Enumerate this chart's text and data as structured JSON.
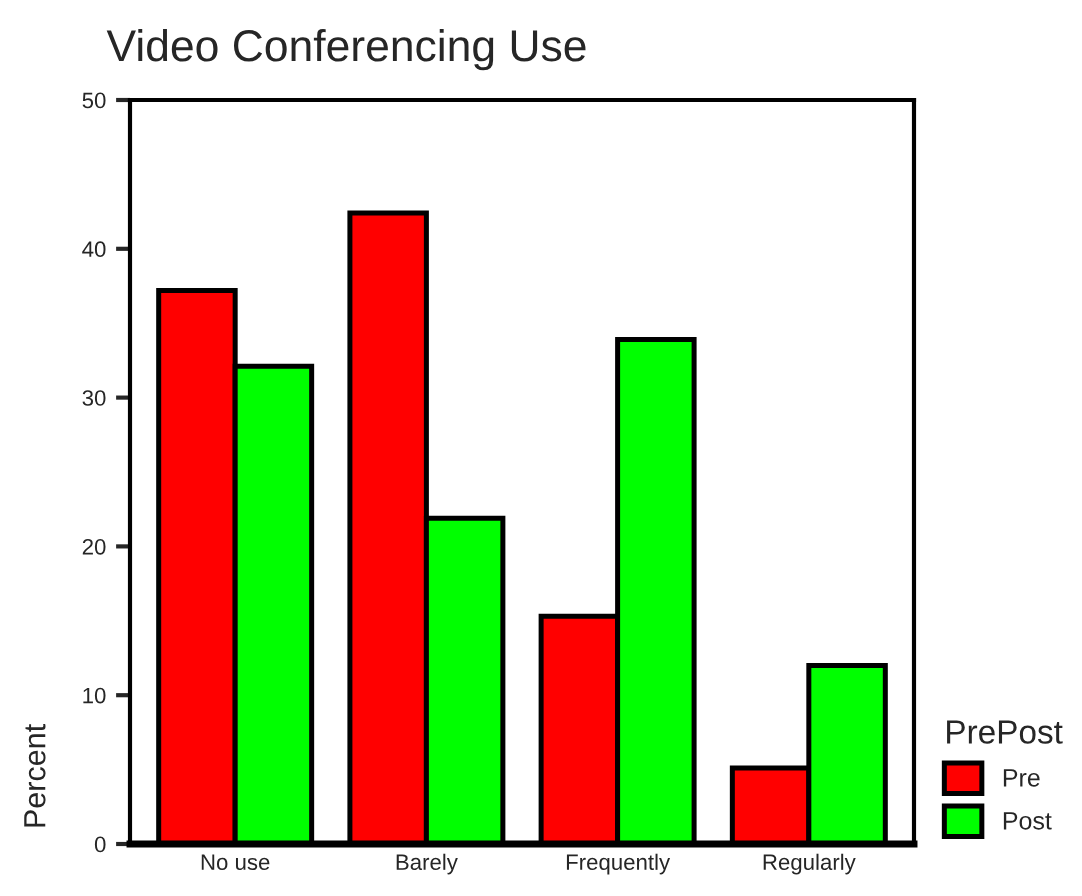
{
  "chart_data": {
    "type": "bar",
    "title": "Video Conferencing Use",
    "ylabel": "Percent",
    "legend_title": "PrePost",
    "categories": [
      "No use",
      "Barely",
      "Frequently",
      "Regularly"
    ],
    "series": [
      {
        "name": "Pre",
        "color": "#ff0000",
        "values": [
          37.2,
          42.4,
          15.3,
          5.1
        ]
      },
      {
        "name": "Post",
        "color": "#00ff00",
        "values": [
          32.1,
          21.9,
          33.9,
          12.0
        ]
      }
    ],
    "ylim": [
      0,
      50
    ],
    "yticks": [
      0,
      10,
      20,
      30,
      40,
      50
    ],
    "grid": false,
    "legend": "right"
  }
}
